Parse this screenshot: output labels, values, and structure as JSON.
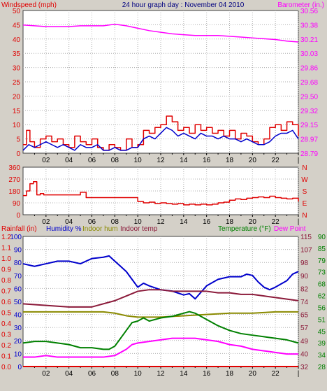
{
  "colors": {
    "background": "#d4d0c8",
    "plot_bg": "#ffffff",
    "red": "#e00000",
    "magenta": "#ff00ff",
    "blue": "#0000cc",
    "maroon": "#8b1a3a",
    "olive": "#8a8a00",
    "green": "#008000",
    "grid": "#b0b0b0"
  },
  "chart_data": [
    {
      "type": "line",
      "title": "24 hour graph day : November 04 2010",
      "left_axis_label": "Windspeed (mph)",
      "right_axis_label": "Barometer (in.)",
      "x_ticks": [
        "02",
        "04",
        "06",
        "08",
        "10",
        "12",
        "14",
        "16",
        "18",
        "20",
        "22",
        "|"
      ],
      "x_range": [
        0,
        24
      ],
      "left_ticks": [
        "0",
        "5",
        "10",
        "15",
        "20",
        "25",
        "30",
        "35",
        "40",
        "45",
        "50"
      ],
      "left_range": [
        0,
        50
      ],
      "right_ticks": [
        "28.79",
        "28.97",
        "29.15",
        "29.32",
        "29.50",
        "29.68",
        "29.86",
        "30.03",
        "30.21",
        "30.38",
        "30.56"
      ],
      "right_range": [
        28.79,
        30.56
      ],
      "series": [
        {
          "name": "Windspeed",
          "axis": "left",
          "color": "red",
          "step": true,
          "x": [
            0,
            0.3,
            0.6,
            1,
            1.5,
            2,
            2.5,
            3,
            3.5,
            4,
            4.5,
            5,
            5.5,
            6,
            6.5,
            7,
            7.5,
            8,
            8.5,
            9,
            9.5,
            10,
            10.5,
            11,
            11.5,
            12,
            12.5,
            13,
            13.5,
            14,
            14.5,
            15,
            15.5,
            16,
            16.5,
            17,
            17.5,
            18,
            18.5,
            19,
            19.5,
            20,
            20.5,
            21,
            21.5,
            22,
            22.5,
            23,
            23.5,
            24
          ],
          "y": [
            3,
            8,
            4,
            2,
            5,
            6,
            4,
            5,
            3,
            2,
            6,
            4,
            3,
            5,
            2,
            1,
            3,
            2,
            1,
            5,
            2,
            3,
            8,
            7,
            9,
            10,
            13,
            11,
            8,
            9,
            7,
            10,
            8,
            9,
            7,
            8,
            6,
            8,
            5,
            7,
            6,
            4,
            3,
            5,
            9,
            10,
            8,
            11,
            10,
            6
          ]
        },
        {
          "name": "Wind gust average",
          "axis": "left",
          "color": "blue",
          "step": false,
          "x": [
            0,
            0.5,
            1,
            1.5,
            2,
            2.5,
            3,
            3.5,
            4,
            4.5,
            5,
            5.5,
            6,
            6.5,
            7,
            7.5,
            8,
            8.5,
            9,
            9.5,
            10,
            10.5,
            11,
            11.5,
            12,
            12.5,
            13,
            13.5,
            14,
            14.5,
            15,
            15.5,
            16,
            16.5,
            17,
            17.5,
            18,
            18.5,
            19,
            19.5,
            20,
            20.5,
            21,
            21.5,
            22,
            22.5,
            23,
            23.5,
            24
          ],
          "y": [
            1,
            3,
            2,
            3,
            4,
            3,
            2,
            3,
            2,
            1,
            3,
            2,
            2,
            3,
            1,
            1,
            2,
            1,
            1,
            2,
            2,
            5,
            6,
            5,
            7,
            9,
            8,
            6,
            7,
            6,
            5,
            7,
            6,
            6,
            5,
            6,
            5,
            5,
            4,
            5,
            4,
            3,
            3,
            4,
            6,
            7,
            7,
            8,
            5
          ]
        },
        {
          "name": "Barometer",
          "axis": "right",
          "color": "magenta",
          "step": false,
          "x": [
            0,
            1,
            2,
            3,
            4,
            5,
            6,
            7,
            8,
            9,
            10,
            11,
            12,
            13,
            14,
            15,
            16,
            17,
            18,
            19,
            20,
            21,
            22,
            23,
            24
          ],
          "y": [
            30.38,
            30.37,
            30.36,
            30.36,
            30.36,
            30.37,
            30.37,
            30.37,
            30.39,
            30.37,
            30.34,
            30.31,
            30.29,
            30.27,
            30.26,
            30.25,
            30.25,
            30.25,
            30.24,
            30.23,
            30.22,
            30.21,
            30.2,
            30.18,
            30.17
          ]
        }
      ]
    },
    {
      "type": "line",
      "title": "",
      "x_ticks": [
        "02",
        "04",
        "06",
        "08",
        "10",
        "12",
        "14",
        "16",
        "18",
        "20",
        "22",
        "|"
      ],
      "x_range": [
        0,
        24
      ],
      "left_ticks": [
        "0",
        "90",
        "180",
        "270",
        "360"
      ],
      "left_range": [
        0,
        360
      ],
      "right_ticks": [
        "N",
        "E",
        "S",
        "W",
        "N"
      ],
      "series": [
        {
          "name": "Wind direction",
          "axis": "left",
          "color": "red",
          "step": true,
          "x": [
            0,
            0.3,
            0.6,
            0.9,
            1.2,
            1.5,
            1.8,
            2.5,
            3,
            4,
            4.5,
            5,
            5.5,
            6,
            7,
            8,
            9,
            10,
            10.5,
            11,
            11.5,
            12,
            12.5,
            13,
            13.5,
            14,
            14.5,
            15,
            15.5,
            16,
            16.5,
            17,
            17.5,
            18,
            18.5,
            19,
            19.5,
            20,
            20.5,
            21,
            21.5,
            22,
            22.5,
            23,
            23.5,
            24
          ],
          "y": [
            145,
            180,
            235,
            250,
            150,
            160,
            150,
            150,
            150,
            150,
            150,
            170,
            130,
            130,
            130,
            130,
            130,
            100,
            90,
            95,
            85,
            90,
            85,
            80,
            85,
            75,
            80,
            75,
            80,
            75,
            80,
            90,
            95,
            110,
            120,
            115,
            125,
            130,
            135,
            130,
            140,
            130,
            125,
            120,
            125,
            100
          ]
        }
      ]
    },
    {
      "type": "line",
      "title": "",
      "legend": [
        "Rainfall (in)",
        "Humidity %",
        "Indoor hum",
        "Indoor temp",
        "Temperature (°F)",
        "Dew Point"
      ],
      "x_ticks": [
        "02",
        "04",
        "06",
        "08",
        "10",
        "12",
        "14",
        "16",
        "18",
        "20",
        "22",
        "|"
      ],
      "x_range": [
        0,
        24
      ],
      "rain_ticks": [
        "0.0",
        "0.1",
        "0.2",
        "0.3",
        "0.4",
        "0.5",
        "0.6",
        "0.7",
        "0.8",
        "0.9",
        "1.0",
        "1.1",
        "1.2"
      ],
      "rain_range": [
        0,
        1.2
      ],
      "hum_ticks": [
        "0",
        "10",
        "20",
        "30",
        "40",
        "50",
        "60",
        "70",
        "80",
        "90",
        "100"
      ],
      "hum_range": [
        0,
        100
      ],
      "temp_ticks_a": [
        "32",
        "40",
        "49",
        "57",
        "65",
        "74",
        "82",
        "90",
        "98",
        "107",
        "115"
      ],
      "temp_ticks_b": [
        "28",
        "34",
        "39",
        "45",
        "51",
        "56",
        "62",
        "68",
        "73",
        "79",
        "85",
        "90"
      ],
      "temp_range_a": [
        32,
        115
      ],
      "series": [
        {
          "name": "Humidity %",
          "axis": "hum",
          "color": "blue",
          "x": [
            0,
            1,
            2,
            3,
            4,
            5,
            6,
            7,
            7.5,
            8,
            8.5,
            9,
            9.5,
            10,
            10.5,
            11,
            12,
            13,
            14,
            14.5,
            15,
            15.5,
            16,
            17,
            18,
            19,
            19.5,
            20,
            20.5,
            21,
            21.5,
            22,
            23,
            23.5,
            24
          ],
          "y": [
            79,
            77,
            79,
            81,
            81,
            79,
            83,
            84,
            85,
            81,
            77,
            73,
            67,
            61,
            64,
            62,
            59,
            58,
            55,
            56,
            52,
            57,
            62,
            67,
            69,
            69,
            71,
            70,
            65,
            61,
            59,
            61,
            66,
            71,
            73
          ]
        },
        {
          "name": "Indoor hum",
          "axis": "hum",
          "color": "olive",
          "x": [
            0,
            2,
            4,
            6,
            7,
            8,
            9,
            10,
            12,
            14,
            16,
            18,
            20,
            22,
            24
          ],
          "y": [
            42,
            42,
            42,
            42,
            42,
            41,
            39,
            38,
            38,
            39,
            40,
            41,
            41,
            42,
            42
          ]
        },
        {
          "name": "Indoor temp",
          "axis": "temp_a",
          "color": "maroon",
          "x": [
            0,
            2,
            4,
            6,
            8,
            9,
            10,
            11,
            12,
            13,
            14,
            15,
            16,
            17,
            18,
            19,
            20,
            21,
            22,
            23,
            24
          ],
          "y": [
            72,
            71,
            70,
            70,
            74,
            77,
            80,
            81,
            81,
            80,
            80,
            80,
            80,
            79,
            79,
            78,
            78,
            77,
            76,
            75,
            74
          ]
        },
        {
          "name": "Temperature (°F)",
          "axis": "temp_a",
          "color": "green",
          "x": [
            0,
            1,
            2,
            3,
            4,
            5,
            6,
            7,
            7.5,
            8,
            8.5,
            9,
            9.5,
            10,
            10.5,
            11,
            12,
            13,
            14,
            14.5,
            15,
            15.5,
            16,
            17,
            18,
            19,
            20,
            21,
            22,
            23,
            24
          ],
          "y": [
            47,
            48,
            48,
            47,
            46,
            44,
            44,
            43,
            43,
            45,
            50,
            55,
            60,
            61,
            63,
            61,
            63,
            64,
            66,
            67,
            66,
            64,
            62,
            58,
            55,
            53,
            52,
            51,
            50,
            49,
            47
          ]
        },
        {
          "name": "Dew Point",
          "axis": "temp_a",
          "color": "magenta",
          "x": [
            0,
            1,
            2,
            3,
            4,
            5,
            6,
            7,
            8,
            8.5,
            9,
            9.5,
            10,
            11,
            12,
            13,
            14,
            15,
            16,
            17,
            18,
            19,
            20,
            21,
            22,
            23,
            24
          ],
          "y": [
            38,
            38,
            39,
            38,
            38,
            38,
            38,
            38,
            39,
            41,
            43,
            46,
            47,
            48,
            49,
            50,
            50,
            50,
            49,
            48,
            46,
            45,
            43,
            42,
            41,
            40,
            40
          ]
        },
        {
          "name": "Rainfall (in)",
          "axis": "rain",
          "color": "red",
          "x": [
            0,
            24
          ],
          "y": [
            0,
            0
          ]
        }
      ]
    }
  ]
}
